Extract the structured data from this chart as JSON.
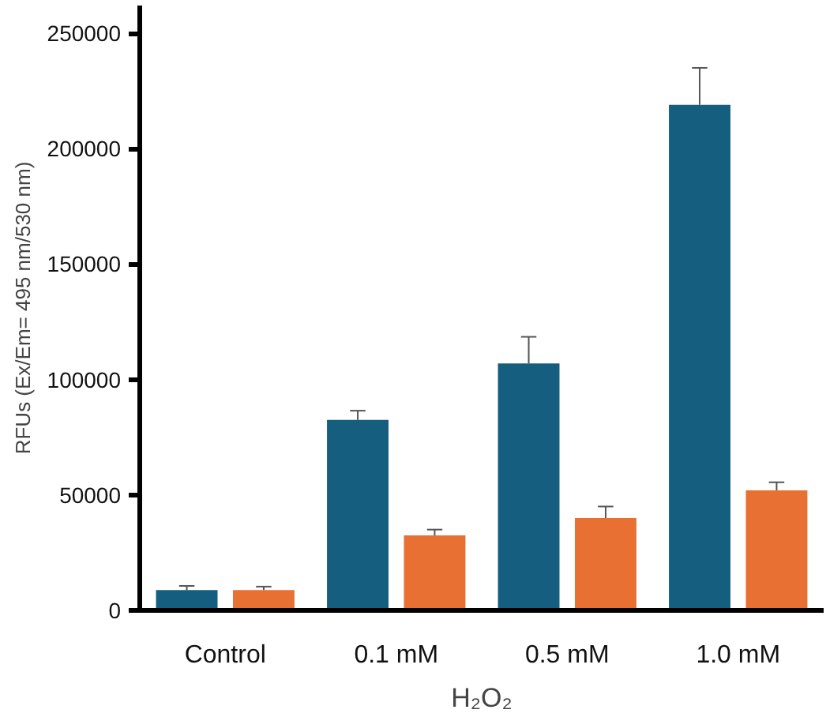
{
  "chart_data": {
    "type": "bar",
    "xlabel": "H₂O₂",
    "ylabel": "RFUs (Ex/Em= 495 nm/530 nm)",
    "categories": [
      "Control",
      "0.1 mM",
      "0.5 mM",
      "1.0 mM"
    ],
    "series": [
      {
        "color": "#165e80",
        "values": [
          8800,
          82500,
          107000,
          219000
        ],
        "errors": [
          [
            8800,
            10600
          ],
          [
            82500,
            86500
          ],
          [
            107000,
            118500
          ],
          [
            219000,
            235000
          ]
        ]
      },
      {
        "color": "#e87033",
        "values": [
          8800,
          32500,
          40000,
          52000
        ],
        "errors": [
          [
            8800,
            10300
          ],
          [
            32500,
            35000
          ],
          [
            40000,
            45000
          ],
          [
            52000,
            55500
          ]
        ]
      }
    ],
    "ylim": [
      0,
      262000
    ],
    "yticks": [
      0,
      50000,
      100000,
      150000,
      200000,
      250000
    ],
    "grid": false
  }
}
